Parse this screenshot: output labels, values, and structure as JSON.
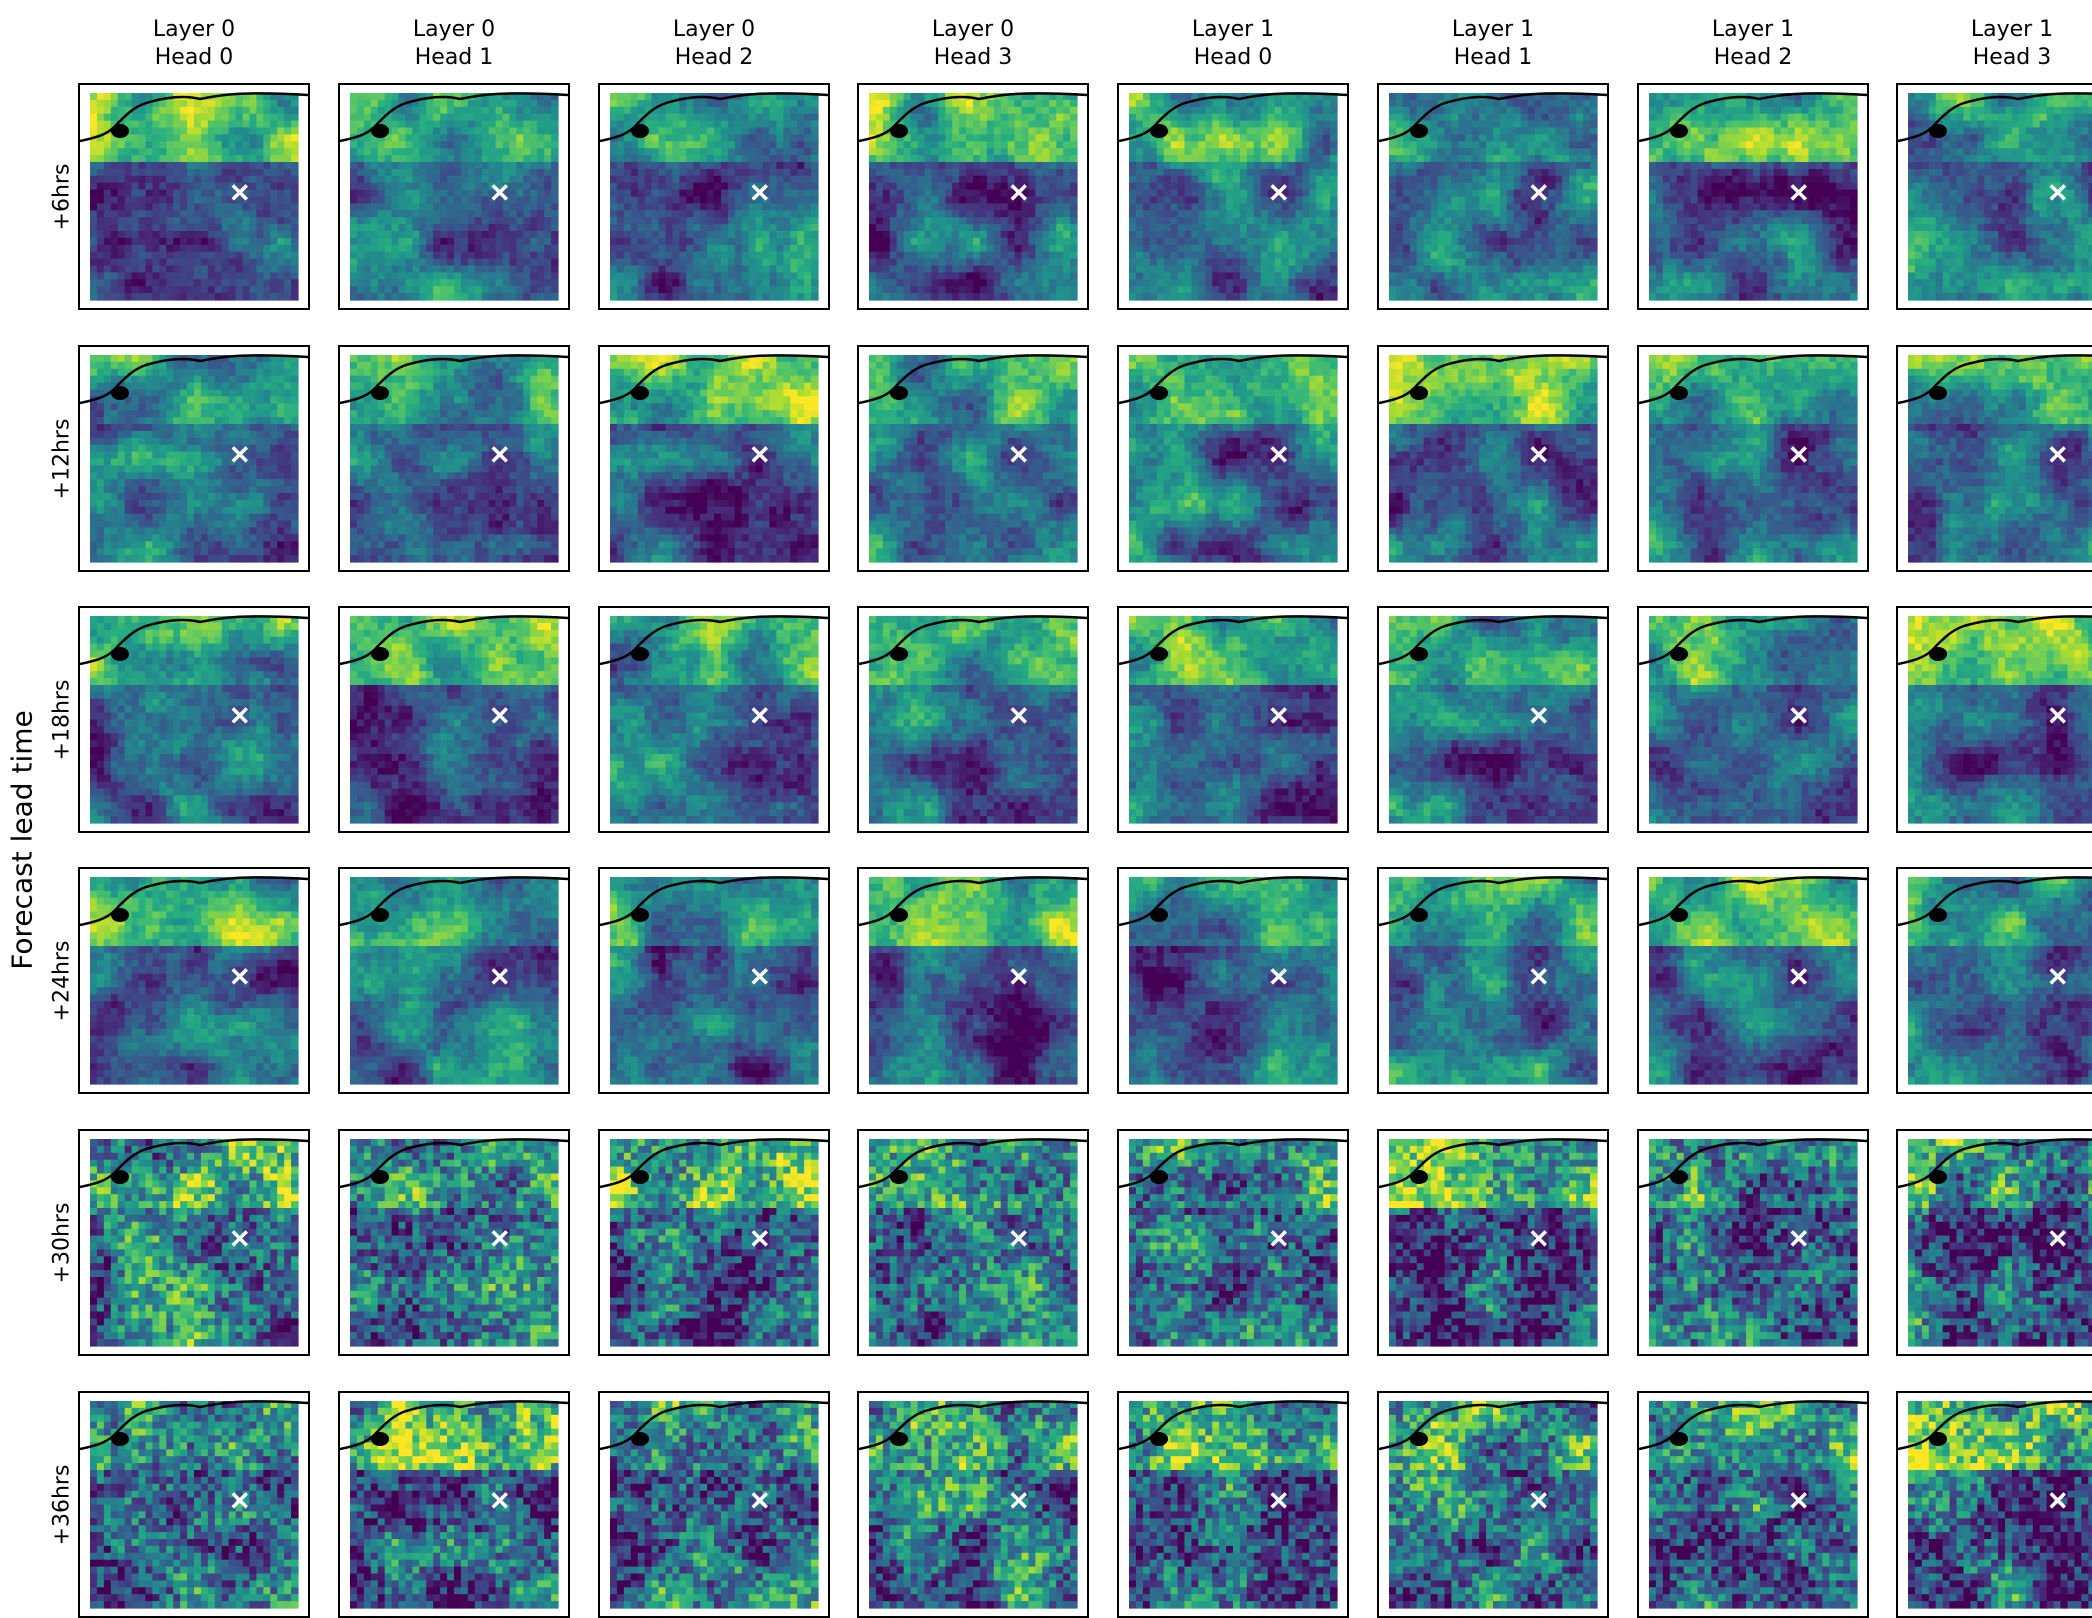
{
  "chart_data": {
    "type": "heatmap",
    "y_axis_title": "Forecast lead time",
    "columns": [
      {
        "layer": "Layer 0",
        "head": "Head 0"
      },
      {
        "layer": "Layer 0",
        "head": "Head 1"
      },
      {
        "layer": "Layer 0",
        "head": "Head 2"
      },
      {
        "layer": "Layer 0",
        "head": "Head 3"
      },
      {
        "layer": "Layer 1",
        "head": "Head 0"
      },
      {
        "layer": "Layer 1",
        "head": "Head 1"
      },
      {
        "layer": "Layer 1",
        "head": "Head 2"
      },
      {
        "layer": "Layer 1",
        "head": "Head 3"
      }
    ],
    "rows": [
      "+6hrs",
      "+12hrs",
      "+18hrs",
      "+24hrs",
      "+30hrs",
      "+36hrs"
    ],
    "colormap": "viridis",
    "marker": "×",
    "marker_color": "#ffffff",
    "coastline_color": "#000000",
    "colors": {
      "low": "#440154",
      "mid": "#21918c",
      "high": "#fde725"
    }
  }
}
